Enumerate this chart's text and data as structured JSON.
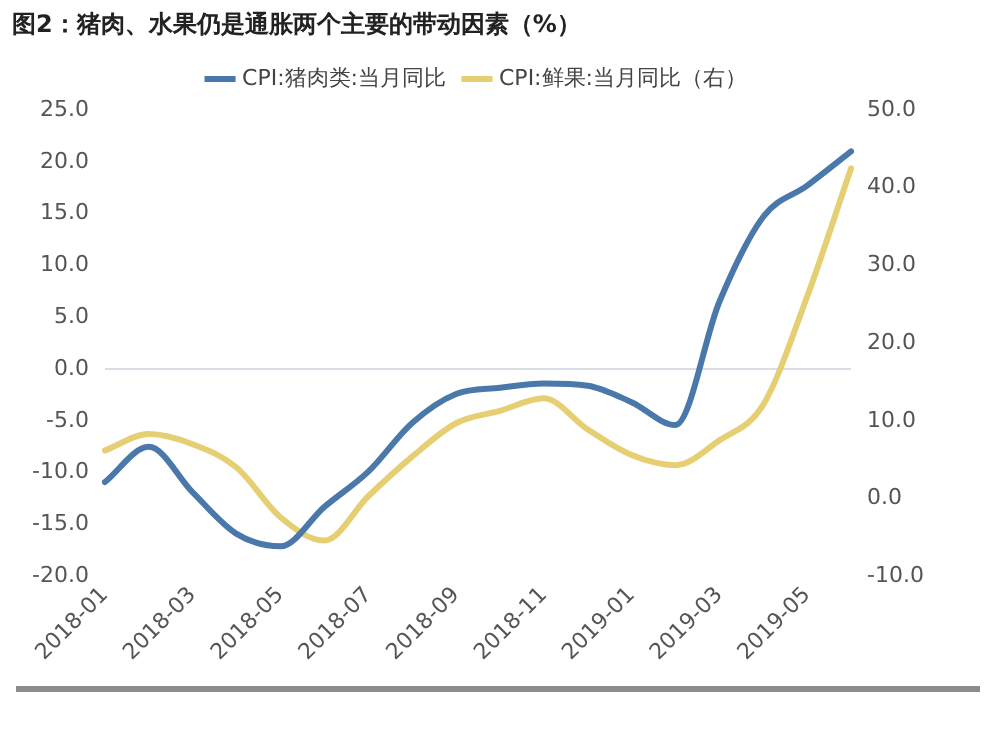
{
  "chart_data": {
    "type": "line",
    "title": "图2：猪肉、水果仍是通胀两个主要的带动因素（%）",
    "categories": [
      "2018-01",
      null,
      "2018-03",
      null,
      "2018-05",
      null,
      "2018-07",
      null,
      "2018-09",
      null,
      "2018-11",
      null,
      "2019-01",
      null,
      "2019-03",
      null,
      "2019-05",
      null
    ],
    "series": [
      {
        "name": "CPI:猪肉类:当月同比",
        "color": "#4a78aa",
        "values": [
          -10.9,
          -7.5,
          -11.9,
          -15.9,
          -17.1,
          -13.3,
          -9.9,
          -5.2,
          -2.4,
          -1.8,
          -1.4,
          -1.6,
          -3.2,
          -5.4,
          6.5,
          14.7,
          17.7,
          21.0
        ]
      },
      {
        "name": "CPI:鲜果:当月同比（右）",
        "color": "#e6cf72",
        "axis": "y2",
        "values": [
          6.2,
          8.3,
          7.0,
          4.0,
          -2.4,
          -5.4,
          0.3,
          5.4,
          9.7,
          11.3,
          12.9,
          8.9,
          5.6,
          4.3,
          7.5,
          12.1,
          26,
          42.5
        ]
      }
    ],
    "ylim": [
      -20,
      25
    ],
    "yticks": [
      {
        "value": -20,
        "label": "-20.0"
      },
      {
        "value": -15,
        "label": "-15.0"
      },
      {
        "value": -10,
        "label": "-10.0"
      },
      {
        "value": -5,
        "label": "-5.0"
      },
      {
        "value": 0,
        "label": "0.0"
      },
      {
        "value": 5,
        "label": "5.0"
      },
      {
        "value": 10,
        "label": "10.0"
      },
      {
        "value": 15,
        "label": "15.0"
      },
      {
        "value": 20,
        "label": "20.0"
      },
      {
        "value": 25,
        "label": "25.0"
      }
    ],
    "y2lim": [
      -10,
      50
    ],
    "y2ticks": [
      {
        "value": -10,
        "label": "-10.0"
      },
      {
        "value": 0,
        "label": "0.0"
      },
      {
        "value": 10,
        "label": "10.0"
      },
      {
        "value": 20,
        "label": "20.0"
      },
      {
        "value": 30,
        "label": "30.0"
      },
      {
        "value": 40,
        "label": "40.0"
      },
      {
        "value": 50,
        "label": "50.0"
      }
    ],
    "ref_lines": [
      {
        "axis": "y",
        "value": 0,
        "color": "#d9dde6"
      }
    ],
    "grid": false,
    "legend": "top",
    "marker": "none",
    "line_style": "solid"
  }
}
